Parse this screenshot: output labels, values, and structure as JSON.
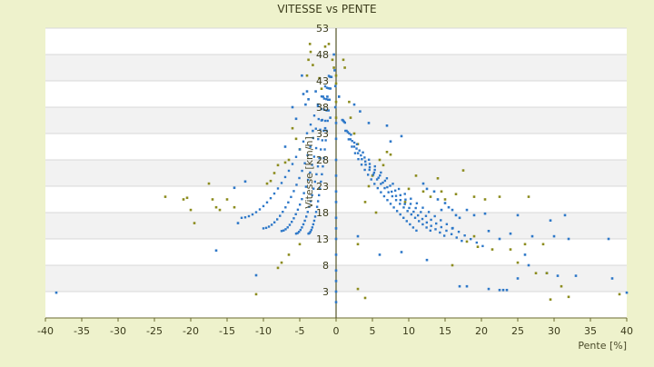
{
  "chart_data": {
    "type": "scatter",
    "title": "VITESSE vs PENTE",
    "xlabel": "Pente [%]",
    "ylabel": "Vitesse [km/h]",
    "xlim": [
      -40,
      40
    ],
    "ylim": [
      -2,
      53
    ],
    "x_ticks": [
      "-40",
      "-35",
      "-30",
      "-25",
      "-20",
      "-15",
      "-10",
      "-5",
      "0",
      "5",
      "10",
      "15",
      "20",
      "25",
      "30",
      "35",
      "40"
    ],
    "y_ticks": [
      "3",
      "8",
      "13",
      "18",
      "23",
      "28",
      "33",
      "38",
      "43",
      "48",
      "53"
    ],
    "grid": true,
    "legend": "none",
    "colors": {
      "series_blue": "#2e78c8",
      "series_olive": "#8c8c1e",
      "axis": "#6a6a30",
      "plot_bg": "#ffffff",
      "band": "#f2f2f2",
      "page_bg": "#eef2cc"
    },
    "series": [
      {
        "values": [
          [
            -38.5,
            2.8
          ],
          [
            -16.5,
            10.8
          ],
          [
            -13.5,
            16.0
          ],
          [
            -12.5,
            23.9
          ],
          [
            -11.0,
            6.1
          ],
          [
            -14.0,
            22.7
          ],
          [
            -4.7,
            44.0
          ],
          [
            -4.5,
            40.5
          ],
          [
            -4.2,
            38.5
          ],
          [
            -6.0,
            38.0
          ],
          [
            -5.5,
            35.8
          ],
          [
            -7.0,
            30.5
          ],
          [
            -4.0,
            41.0
          ],
          [
            -3.8,
            39.5
          ],
          [
            -2.8,
            41.0
          ],
          [
            -2.5,
            38.5
          ],
          [
            -1.8,
            40.0
          ],
          [
            -1.2,
            40.0
          ],
          [
            -2.0,
            35.5
          ],
          [
            -1.5,
            34.0
          ],
          [
            -0.8,
            36.0
          ],
          [
            -3.2,
            33.5
          ],
          [
            -0.3,
            48.0
          ],
          [
            -0.2,
            45.0
          ],
          [
            -0.1,
            42.0
          ],
          [
            -0.1,
            38.0
          ],
          [
            0.0,
            35.0
          ],
          [
            0.0,
            32.0
          ],
          [
            0.0,
            28.0
          ],
          [
            0.0,
            25.0
          ],
          [
            0.0,
            22.0
          ],
          [
            0.0,
            20.0
          ],
          [
            0.0,
            17.0
          ],
          [
            0.0,
            15.0
          ],
          [
            0.0,
            13.0
          ],
          [
            0.0,
            10.0
          ],
          [
            0.0,
            7.0
          ],
          [
            0.0,
            5.0
          ],
          [
            0.0,
            3.0
          ],
          [
            0.0,
            1.0
          ],
          [
            2.5,
            38.5
          ],
          [
            3.3,
            37.2
          ],
          [
            7.5,
            31.5
          ],
          [
            9.0,
            32.5
          ],
          [
            7.0,
            34.5
          ],
          [
            4.5,
            35.0
          ],
          [
            12.0,
            23.5
          ],
          [
            12.5,
            22.5
          ],
          [
            13.5,
            22.0
          ],
          [
            14.0,
            20.5
          ],
          [
            15.0,
            19.8
          ],
          [
            15.5,
            19.0
          ],
          [
            16.0,
            18.5
          ],
          [
            16.5,
            17.5
          ],
          [
            17.0,
            17.0
          ],
          [
            18.0,
            18.5
          ],
          [
            19.0,
            17.5
          ],
          [
            20.5,
            17.8
          ],
          [
            21.0,
            14.5
          ],
          [
            22.5,
            13.0
          ],
          [
            24.0,
            14.0
          ],
          [
            25.0,
            17.5
          ],
          [
            26.0,
            10.0
          ],
          [
            26.5,
            8.0
          ],
          [
            27.0,
            13.5
          ],
          [
            29.0,
            6.5
          ],
          [
            29.5,
            16.5
          ],
          [
            30.0,
            13.5
          ],
          [
            31.5,
            17.5
          ],
          [
            32.0,
            13.0
          ],
          [
            33.0,
            6.0
          ],
          [
            37.5,
            13.0
          ],
          [
            38.0,
            5.5
          ],
          [
            40.0,
            2.8
          ],
          [
            17.0,
            4.0
          ],
          [
            18.0,
            4.0
          ],
          [
            21.0,
            3.5
          ],
          [
            22.5,
            3.3
          ],
          [
            23.0,
            3.3
          ],
          [
            23.5,
            3.3
          ],
          [
            25.0,
            5.5
          ],
          [
            30.5,
            6.0
          ],
          [
            12.5,
            9.0
          ],
          [
            9.0,
            10.5
          ],
          [
            3.0,
            13.5
          ],
          [
            6.0,
            10.0
          ],
          [
            14.5,
            18.5
          ],
          [
            16.0,
            15.0
          ]
        ]
      },
      {
        "values": [
          [
            -23.5,
            21.0
          ],
          [
            -21.0,
            20.5
          ],
          [
            -20.5,
            20.8
          ],
          [
            -20.0,
            18.5
          ],
          [
            -19.5,
            16.0
          ],
          [
            -17.5,
            23.5
          ],
          [
            -17.0,
            20.5
          ],
          [
            -16.5,
            19.0
          ],
          [
            -16.0,
            18.5
          ],
          [
            -15.0,
            20.5
          ],
          [
            -14.0,
            19.0
          ],
          [
            -11.0,
            2.5
          ],
          [
            -8.0,
            7.5
          ],
          [
            -7.5,
            8.5
          ],
          [
            -6.5,
            10.0
          ],
          [
            -5.0,
            12.0
          ],
          [
            -9.5,
            23.5
          ],
          [
            -9.0,
            24.0
          ],
          [
            -8.5,
            25.5
          ],
          [
            -8.0,
            27.0
          ],
          [
            -7.0,
            27.5
          ],
          [
            -6.5,
            28.0
          ],
          [
            -6.0,
            34.0
          ],
          [
            -5.5,
            32.0
          ],
          [
            -5.0,
            30.0
          ],
          [
            -4.0,
            44.0
          ],
          [
            -3.8,
            47.0
          ],
          [
            -3.6,
            50.0
          ],
          [
            -3.5,
            48.5
          ],
          [
            -3.2,
            46.0
          ],
          [
            -2.3,
            43.5
          ],
          [
            -2.0,
            41.5
          ],
          [
            -1.5,
            49.5
          ],
          [
            -1.0,
            50.0
          ],
          [
            -0.5,
            47.0
          ],
          [
            -0.3,
            45.5
          ],
          [
            0.0,
            44.0
          ],
          [
            0.0,
            42.5
          ],
          [
            0.0,
            39.0
          ],
          [
            0.0,
            36.0
          ],
          [
            1.0,
            47.0
          ],
          [
            1.2,
            45.5
          ],
          [
            1.8,
            39.0
          ],
          [
            2.0,
            36.0
          ],
          [
            2.5,
            33.0
          ],
          [
            3.0,
            31.0
          ],
          [
            3.0,
            12.0
          ],
          [
            4.0,
            20.0
          ],
          [
            4.5,
            23.0
          ],
          [
            5.5,
            18.0
          ],
          [
            5.0,
            25.0
          ],
          [
            6.0,
            28.0
          ],
          [
            6.5,
            27.0
          ],
          [
            7.0,
            29.5
          ],
          [
            7.5,
            29.0
          ],
          [
            9.5,
            20.0
          ],
          [
            10.0,
            22.5
          ],
          [
            11.0,
            25.0
          ],
          [
            12.0,
            22.0
          ],
          [
            13.0,
            21.0
          ],
          [
            14.0,
            24.5
          ],
          [
            14.5,
            22.0
          ],
          [
            15.0,
            20.5
          ],
          [
            16.0,
            8.0
          ],
          [
            16.5,
            21.5
          ],
          [
            17.5,
            26.0
          ],
          [
            18.0,
            12.5
          ],
          [
            19.0,
            13.5
          ],
          [
            19.0,
            21.0
          ],
          [
            19.5,
            11.5
          ],
          [
            20.5,
            20.5
          ],
          [
            21.5,
            11.0
          ],
          [
            22.5,
            21.0
          ],
          [
            24.0,
            11.0
          ],
          [
            25.0,
            8.5
          ],
          [
            26.0,
            12.0
          ],
          [
            26.5,
            21.0
          ],
          [
            27.5,
            6.5
          ],
          [
            28.5,
            12.0
          ],
          [
            29.0,
            6.5
          ],
          [
            29.5,
            1.5
          ],
          [
            31.0,
            4.0
          ],
          [
            32.0,
            2.0
          ],
          [
            39.0,
            2.5
          ],
          [
            3.0,
            3.5
          ],
          [
            4.0,
            1.8
          ]
        ]
      }
    ]
  }
}
